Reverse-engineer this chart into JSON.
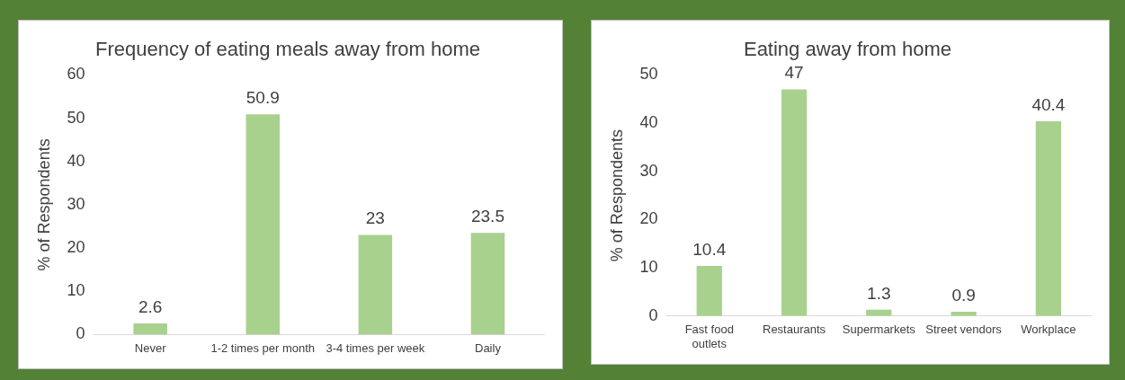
{
  "chart_data": [
    {
      "type": "bar",
      "title": "Frequency of eating meals away from home",
      "ylabel": "% of Respondents",
      "categories": [
        "Never",
        "1-2 times per month",
        "3-4 times per week",
        "Daily"
      ],
      "values": [
        2.6,
        50.9,
        23,
        23.5
      ],
      "color": "#a9d18e",
      "ylim": [
        0,
        60
      ],
      "yticks": [
        0,
        10,
        20,
        30,
        40,
        50,
        60
      ],
      "grid": false,
      "legend": false,
      "data_labels": true
    },
    {
      "type": "bar",
      "title": "Eating away from home",
      "ylabel": "% of Respondents",
      "categories": [
        "Fast food outlets",
        "Restaurants",
        "Supermarkets",
        "Street vendors",
        "Workplace"
      ],
      "values": [
        10.4,
        47,
        1.3,
        0.9,
        40.4
      ],
      "color": "#a9d18e",
      "ylim": [
        0,
        50
      ],
      "yticks": [
        0,
        10,
        20,
        30,
        40,
        50
      ],
      "grid": false,
      "legend": false,
      "data_labels": true
    }
  ]
}
